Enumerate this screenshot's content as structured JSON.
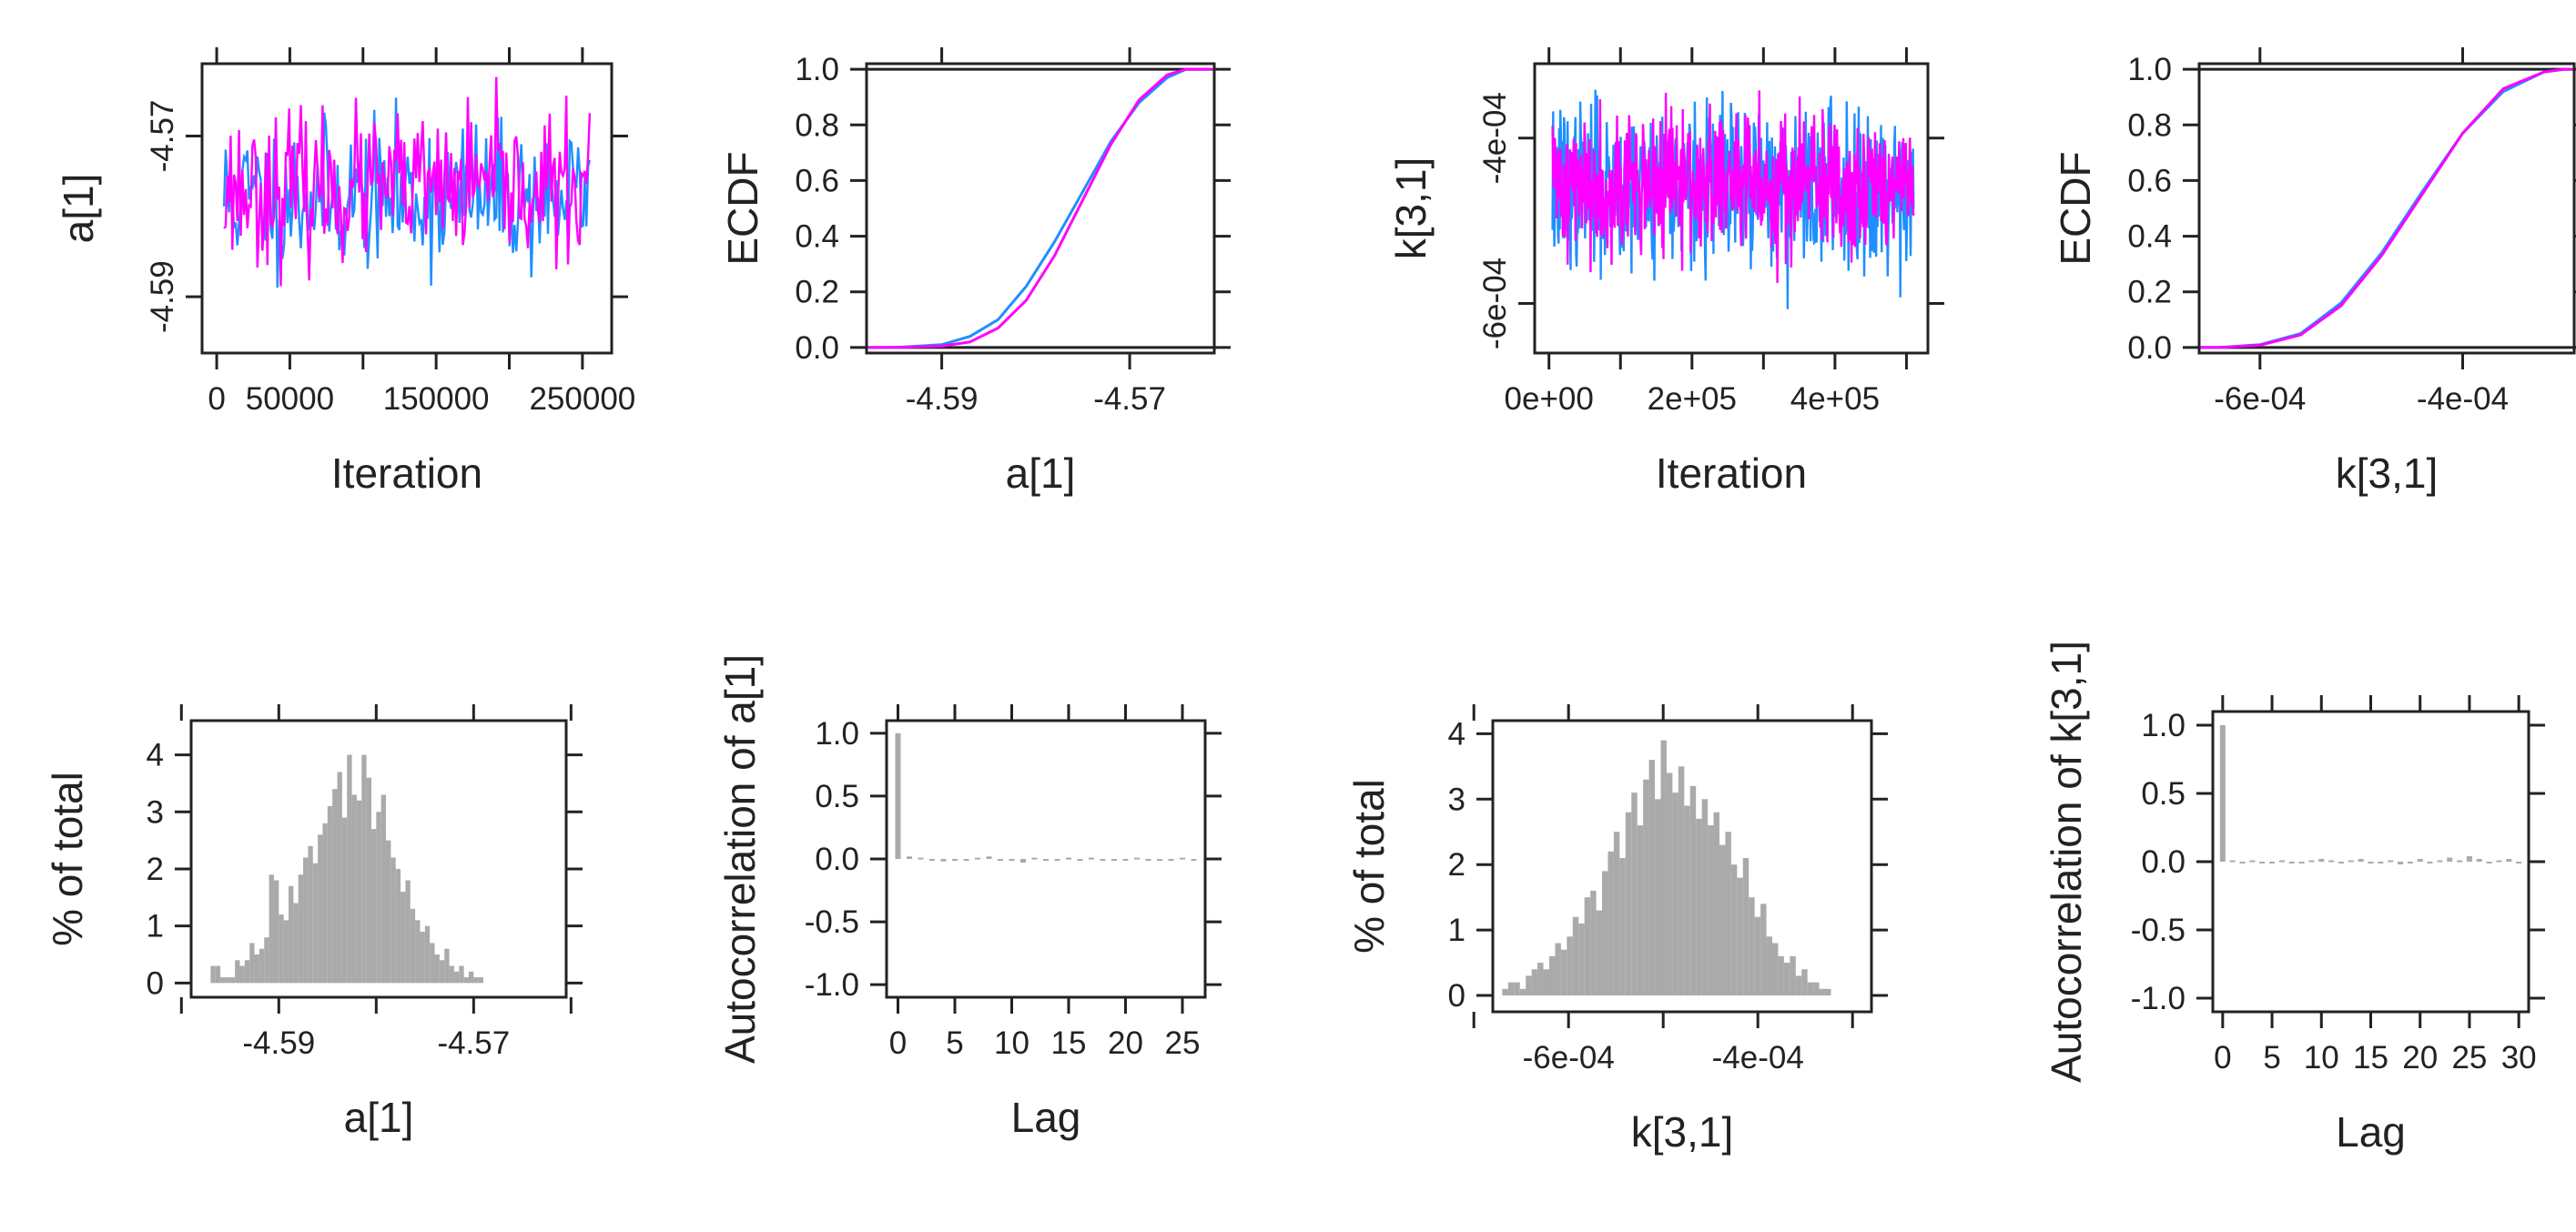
{
  "colors": {
    "chain1": "#1f8fff",
    "chain2": "#ff00ff",
    "bar": "#aaaaaa",
    "axis": "#222222",
    "background": "#ffffff"
  },
  "chart_data": [
    {
      "type": "line",
      "panel": "trace-a1",
      "xlabel": "Iteration",
      "ylabel": "a[1]",
      "xlim": [
        -10000,
        270000
      ],
      "ylim": [
        -4.597,
        -4.561
      ],
      "xticks": [
        0,
        50000,
        100000,
        150000,
        200000,
        250000
      ],
      "xtick_labels": [
        "0",
        "50000",
        "",
        "150000",
        "",
        "250000"
      ],
      "yticks": [
        -4.59,
        -4.57
      ],
      "ytick_labels": [
        "-4.59",
        "-4.57"
      ],
      "series": [
        {
          "color": "chain1",
          "x_start": 5000,
          "x_end": 255000,
          "mean": -4.5775,
          "sd": 0.0045,
          "n": 220,
          "seed": 11
        },
        {
          "color": "chain2",
          "x_start": 5000,
          "x_end": 255000,
          "mean": -4.5765,
          "sd": 0.0045,
          "n": 220,
          "seed": 23
        }
      ]
    },
    {
      "type": "line",
      "panel": "ecdf-a1",
      "xlabel": "a[1]",
      "ylabel": "ECDF",
      "xlim": [
        -4.598,
        -4.561
      ],
      "ylim": [
        -0.02,
        1.02
      ],
      "xticks": [
        -4.59,
        -4.57
      ],
      "xtick_labels": [
        "-4.59",
        "-4.57"
      ],
      "yticks": [
        0,
        0.2,
        0.4,
        0.6,
        0.8,
        1.0
      ],
      "ytick_labels": [
        "0.0",
        "0.2",
        "0.4",
        "0.6",
        "0.8",
        "1.0"
      ],
      "hlines": [
        0,
        1
      ],
      "series": [
        {
          "color": "chain1",
          "x": [
            -4.595,
            -4.59,
            -4.587,
            -4.584,
            -4.581,
            -4.578,
            -4.575,
            -4.572,
            -4.569,
            -4.566,
            -4.564
          ],
          "y": [
            0,
            0.01,
            0.04,
            0.1,
            0.22,
            0.38,
            0.56,
            0.74,
            0.88,
            0.97,
            1.0
          ]
        },
        {
          "color": "chain2",
          "x": [
            -4.595,
            -4.59,
            -4.587,
            -4.584,
            -4.581,
            -4.578,
            -4.575,
            -4.572,
            -4.569,
            -4.566,
            -4.564
          ],
          "y": [
            0,
            0.005,
            0.02,
            0.07,
            0.17,
            0.33,
            0.53,
            0.73,
            0.89,
            0.98,
            1.0
          ]
        }
      ]
    },
    {
      "type": "line",
      "panel": "trace-k31",
      "xlabel": "Iteration",
      "ylabel": "k[3,1]",
      "xlim": [
        -20000,
        530000
      ],
      "ylim": [
        -0.00066,
        -0.00031
      ],
      "xticks": [
        0,
        100000,
        200000,
        300000,
        400000,
        500000
      ],
      "xtick_labels": [
        "0e+00",
        "",
        "2e+05",
        "",
        "4e+05",
        ""
      ],
      "yticks": [
        -0.0006,
        -0.0004
      ],
      "ytick_labels": [
        "-6e-04",
        "-4e-04"
      ],
      "series": [
        {
          "color": "chain1",
          "x_start": 5000,
          "x_end": 510000,
          "mean": -0.000458,
          "sd": 4.8e-05,
          "n": 600,
          "seed": 37
        },
        {
          "color": "chain2",
          "x_start": 5000,
          "x_end": 510000,
          "mean": -0.000455,
          "sd": 4.2e-05,
          "n": 600,
          "seed": 41
        }
      ]
    },
    {
      "type": "line",
      "panel": "ecdf-k31",
      "xlabel": "k[3,1]",
      "ylabel": "ECDF",
      "xlim": [
        -0.00066,
        -0.00029
      ],
      "ylim": [
        -0.02,
        1.02
      ],
      "xticks": [
        -0.0006,
        -0.0004
      ],
      "xtick_labels": [
        "-6e-04",
        "-4e-04"
      ],
      "yticks": [
        0,
        0.2,
        0.4,
        0.6,
        0.8,
        1.0
      ],
      "ytick_labels": [
        "0.0",
        "0.2",
        "0.4",
        "0.6",
        "0.8",
        "1.0"
      ],
      "hlines": [
        0,
        1
      ],
      "series": [
        {
          "color": "chain1",
          "x": [
            -0.00064,
            -0.0006,
            -0.00056,
            -0.00052,
            -0.00048,
            -0.00044,
            -0.0004,
            -0.00036,
            -0.00032,
            -0.0003
          ],
          "y": [
            0,
            0.01,
            0.05,
            0.16,
            0.34,
            0.56,
            0.77,
            0.92,
            0.99,
            1.0
          ]
        },
        {
          "color": "chain2",
          "x": [
            -0.00064,
            -0.0006,
            -0.00056,
            -0.00052,
            -0.00048,
            -0.00044,
            -0.0004,
            -0.00036,
            -0.00032,
            -0.0003
          ],
          "y": [
            0,
            0.008,
            0.045,
            0.15,
            0.33,
            0.55,
            0.77,
            0.93,
            0.99,
            1.0
          ]
        }
      ]
    },
    {
      "type": "bar",
      "panel": "hist-a1",
      "xlabel": "a[1]",
      "ylabel": "% of total",
      "xlim": [
        -4.599,
        -4.5605
      ],
      "ylim": [
        -0.25,
        4.6
      ],
      "xticks": [
        -4.6,
        -4.59,
        -4.58,
        -4.57,
        -4.56
      ],
      "xtick_labels": [
        "",
        "-4.59",
        "",
        "-4.57",
        ""
      ],
      "yticks": [
        0,
        1,
        2,
        3,
        4
      ],
      "ytick_labels": [
        "0",
        "1",
        "2",
        "3",
        "4"
      ],
      "bins": {
        "start": -4.597,
        "width": 0.0005
      },
      "values": [
        0.3,
        0.3,
        0.1,
        0.1,
        0.1,
        0.4,
        0.3,
        0.4,
        0.7,
        0.5,
        0.6,
        0.8,
        1.9,
        1.8,
        1.2,
        1.1,
        1.7,
        1.4,
        1.9,
        2.2,
        2.4,
        2.1,
        2.6,
        2.8,
        3.1,
        3.4,
        3.7,
        2.9,
        4.0,
        3.3,
        3.2,
        4.0,
        3.6,
        2.7,
        3.0,
        3.3,
        2.5,
        2.2,
        2.0,
        1.6,
        1.8,
        1.3,
        1.1,
        0.9,
        1.0,
        0.7,
        0.5,
        0.4,
        0.6,
        0.3,
        0.2,
        0.3,
        0.1,
        0.2,
        0.1,
        0.1
      ]
    },
    {
      "type": "bar",
      "panel": "acf-a1",
      "xlabel": "Lag",
      "ylabel": "Autocorrelation of a[1]",
      "xlim": [
        -1,
        27
      ],
      "ylim": [
        -1.1,
        1.1
      ],
      "xticks": [
        0,
        5,
        10,
        15,
        20,
        25
      ],
      "xtick_labels": [
        "0",
        "5",
        "10",
        "15",
        "20",
        "25"
      ],
      "yticks": [
        -1,
        -0.5,
        0,
        0.5,
        1
      ],
      "ytick_labels": [
        "-1.0",
        "-0.5",
        "0.0",
        "0.5",
        "1.0"
      ],
      "values": [
        1.0,
        0.02,
        0.01,
        -0.01,
        -0.02,
        0.0,
        -0.01,
        0.01,
        0.02,
        0.0,
        -0.01,
        -0.03,
        0.01,
        0.0,
        -0.01,
        0.01,
        0.0,
        0.01,
        -0.01,
        0.0,
        0.0,
        0.01,
        0.0,
        -0.01,
        0.0,
        0.01,
        0.0
      ]
    },
    {
      "type": "bar",
      "panel": "hist-k31",
      "xlabel": "k[3,1]",
      "ylabel": "% of total",
      "xlim": [
        -0.00068,
        -0.00028
      ],
      "ylim": [
        -0.25,
        4.2
      ],
      "xticks": [
        -0.0007,
        -0.0006,
        -0.0005,
        -0.0004,
        -0.0003
      ],
      "xtick_labels": [
        "",
        "-6e-04",
        "",
        "-4e-04",
        ""
      ],
      "yticks": [
        0,
        1,
        2,
        3,
        4
      ],
      "ytick_labels": [
        "0",
        "1",
        "2",
        "3",
        "4"
      ],
      "bins": {
        "start": -0.00067,
        "width": 6.2e-06
      },
      "values": [
        0.1,
        0.2,
        0.2,
        0.1,
        0.3,
        0.4,
        0.5,
        0.4,
        0.6,
        0.8,
        0.7,
        0.9,
        1.2,
        1.1,
        1.5,
        1.6,
        1.3,
        1.9,
        2.2,
        2.5,
        2.1,
        2.8,
        3.1,
        2.6,
        3.3,
        3.6,
        3.0,
        3.9,
        3.4,
        3.1,
        3.5,
        2.9,
        3.2,
        2.7,
        3.0,
        2.6,
        2.8,
        2.3,
        2.5,
        2.0,
        1.8,
        2.1,
        1.5,
        1.2,
        1.4,
        0.9,
        0.8,
        0.6,
        0.5,
        0.6,
        0.3,
        0.4,
        0.2,
        0.2,
        0.1,
        0.1
      ]
    },
    {
      "type": "bar",
      "panel": "acf-k31",
      "xlabel": "Lag",
      "ylabel": "Autocorrelation of k[3,1]",
      "xlim": [
        -1,
        31
      ],
      "ylim": [
        -1.1,
        1.1
      ],
      "xticks": [
        0,
        5,
        10,
        15,
        20,
        25,
        30
      ],
      "xtick_labels": [
        "0",
        "5",
        "10",
        "15",
        "20",
        "25",
        "30"
      ],
      "yticks": [
        -1,
        -0.5,
        0,
        0.5,
        1
      ],
      "ytick_labels": [
        "-1.0",
        "-0.5",
        "0.0",
        "0.5",
        "1.0"
      ],
      "values": [
        1.0,
        0.01,
        0.0,
        0.01,
        -0.01,
        0.0,
        0.01,
        0.0,
        -0.01,
        0.01,
        0.02,
        0.01,
        0.0,
        0.01,
        0.02,
        -0.01,
        0.0,
        0.01,
        -0.02,
        -0.01,
        0.02,
        0.0,
        0.01,
        0.03,
        0.01,
        0.04,
        0.02,
        0.0,
        0.01,
        0.02,
        -0.01
      ]
    }
  ]
}
